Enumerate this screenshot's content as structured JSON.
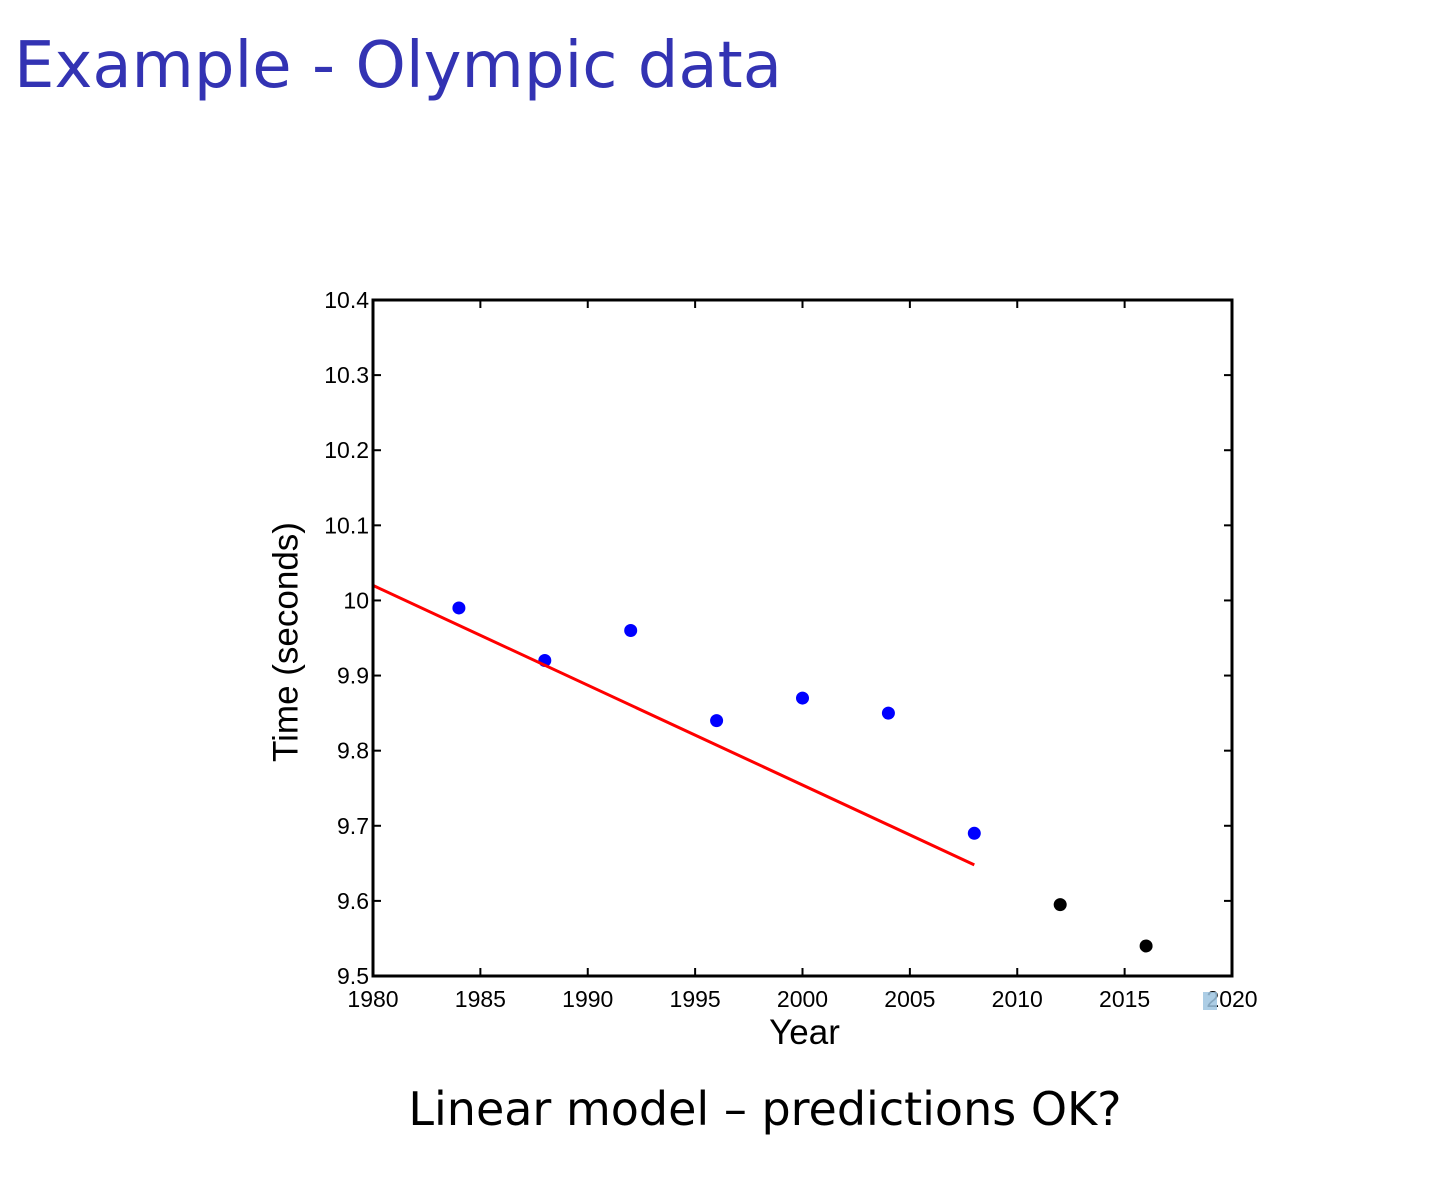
{
  "slide": {
    "title": "Example - Olympic data",
    "caption": "Linear model – predictions OK?"
  },
  "chart_data": {
    "type": "scatter",
    "xlabel": "Year",
    "ylabel": "Time (seconds)",
    "xlim": [
      1980,
      2020
    ],
    "ylim": [
      9.5,
      10.4
    ],
    "xticks": [
      1980,
      1985,
      1990,
      1995,
      2000,
      2005,
      2010,
      2015,
      2020
    ],
    "yticks": [
      9.5,
      9.6,
      9.7,
      9.8,
      9.9,
      10,
      10.1,
      10.2,
      10.3,
      10.4
    ],
    "grid": false,
    "series": [
      {
        "type": "scatter",
        "color": "#0000ff",
        "x": [
          1984,
          1988,
          1992,
          1996,
          2000,
          2004,
          2008
        ],
        "y": [
          9.99,
          9.92,
          9.96,
          9.84,
          9.87,
          9.85,
          9.69
        ]
      },
      {
        "type": "scatter",
        "color": "#000000",
        "x": [
          2012,
          2016
        ],
        "y": [
          9.595,
          9.54
        ]
      },
      {
        "type": "line",
        "color": "#ff0000",
        "x": [
          1980,
          2008
        ],
        "y": [
          10.02,
          9.648
        ]
      }
    ]
  }
}
